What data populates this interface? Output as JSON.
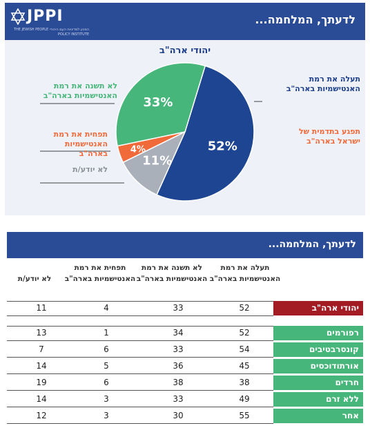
{
  "infographic": {
    "banner_title": "לדעתך, המלחמה...",
    "logo_text": "JPPI",
    "logo_subtitle": "המכון למדיניות העם היהודי THE JEWISH PEOPLE POLICY INSTITUTE"
  },
  "chart_data": [
    {
      "type": "pie",
      "title": "יהודי ארה\"ב",
      "slices": [
        {
          "label": "תעלה את רמת האנטישמיות בארה\"ב",
          "value": 52,
          "color": "#1d4591"
        },
        {
          "label": "לא יודע/ת",
          "value": 11,
          "color": "#a9b0ba"
        },
        {
          "label": "תפחית את רמת האנטישמיות בארה\"ב",
          "value": 4,
          "color": "#f16a3a"
        },
        {
          "label": "לא תשנה את רמת האנטישמיות בארה\"ב",
          "value": 33,
          "color": "#47b67a"
        }
      ],
      "side_labels": {
        "raise": "תעלה את רמת האנטישמיות בארה\"ב",
        "harm": "תפגע בתדמית של ישראל בארה\"ב",
        "nochange": "לא תשנה את רמת האנטישמיות בארה\"ב",
        "reduce": "תפחית את רמת האנטישמיות בארה\"ב",
        "dontknow": "לא יודע/ת"
      },
      "slice_labels": {
        "raise": "52%",
        "dontknow": "11%",
        "reduce": "4%",
        "nochange": "33%"
      }
    },
    {
      "type": "table",
      "title": "לדעתך, המלחמה...",
      "columns": [
        "תעלה את רמת האנטישמיות בארה\"ב",
        "לא תשנה את רמת האנטישמיות בארה\"ב",
        "תפחית את רמת האנטישמיות בארה\"ב",
        "לא יודע/ת"
      ],
      "total_row": {
        "label": "יהודי ארה\"ב",
        "values": [
          52,
          33,
          4,
          11
        ]
      },
      "rows": [
        {
          "label": "רפורמים",
          "values": [
            52,
            34,
            1,
            13
          ]
        },
        {
          "label": "קונסרבטיבים",
          "values": [
            54,
            33,
            6,
            7
          ]
        },
        {
          "label": "אורתודוכסים",
          "values": [
            45,
            36,
            5,
            14
          ]
        },
        {
          "label": "חרדים",
          "values": [
            38,
            38,
            6,
            19
          ]
        },
        {
          "label": "ללא זרם",
          "values": [
            49,
            33,
            3,
            14
          ]
        },
        {
          "label": "אחר",
          "values": [
            55,
            30,
            3,
            12
          ]
        }
      ],
      "colors": {
        "total_row": "#a31c24",
        "category": "#47b67a"
      }
    }
  ]
}
